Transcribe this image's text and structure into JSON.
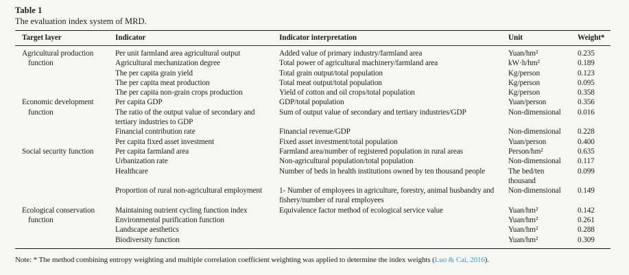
{
  "table": {
    "title": "Table 1",
    "caption": "The evaluation index system of MRD.",
    "columns": [
      "Target layer",
      "Indicator",
      "Indicator interpretation",
      "Unit",
      "Weight*"
    ],
    "groups": [
      {
        "layer": "Agricultural production function",
        "rows": [
          {
            "indicator": "Per unit farmland area agricultural output",
            "interpretation": "Added value of primary industry/farmland area",
            "unit": "Yuan/hm²",
            "weight": "0.235"
          },
          {
            "indicator": "Agricultural mechanization degree",
            "interpretation": "Total power of agricultural machinery/farmland area",
            "unit": "kW·h/hm²",
            "weight": "0.189"
          },
          {
            "indicator": "The per capita grain yield",
            "interpretation": "Total grain output/total population",
            "unit": "Kg/person",
            "weight": "0.123"
          },
          {
            "indicator": "The per capita meat production",
            "interpretation": "Total meat output/total population",
            "unit": "Kg/person",
            "weight": "0.095"
          },
          {
            "indicator": "The per capita non-grain crops production",
            "interpretation": "Yield of cotton and oil crops/total population",
            "unit": "Kg/person",
            "weight": "0.358"
          }
        ]
      },
      {
        "layer": "Economic development function",
        "rows": [
          {
            "indicator": "Per capita GDP",
            "interpretation": "GDP/total population",
            "unit": "Yuan/person",
            "weight": "0.356"
          },
          {
            "indicator": "The ratio of the output value of secondary and tertiary industries to GDP",
            "interpretation": "Sum of output value of secondary and tertiary industries/GDP",
            "unit": "Non-dimensional",
            "weight": "0.016"
          },
          {
            "indicator": "Financial contribution rate",
            "interpretation": "Financial revenue/GDP",
            "unit": "Non-dimensional",
            "weight": "0.228"
          },
          {
            "indicator": "Per capita fixed asset investment",
            "interpretation": "Fixed asset investment/total population",
            "unit": "Yuan/person",
            "weight": "0.400"
          }
        ]
      },
      {
        "layer": "Social security function",
        "rows": [
          {
            "indicator": "Per capita farmland area",
            "interpretation": "Farmland area/number of registered population in rural areas",
            "unit": "Person/hm²",
            "weight": "0.635"
          },
          {
            "indicator": "Urbanization rate",
            "interpretation": "Non-agricultural population/total population",
            "unit": "Non-dimensional",
            "weight": "0.117"
          },
          {
            "indicator": "Healthcare",
            "interpretation": "Number of beds in health institutions owned by ten thousand people",
            "unit": "The bed/ten thousand",
            "weight": "0.099"
          },
          {
            "indicator": "Proportion of rural non-agricultural employment",
            "interpretation": "1- Number of employees in agriculture, forestry, animal husbandry and fishery/number of rural employees",
            "unit": "Non-dimensional",
            "weight": "0.149"
          }
        ]
      },
      {
        "layer": "Ecological conservation function",
        "rows": [
          {
            "indicator": "Maintaining nutrient cycling function index",
            "interpretation": "Equivalence factor method of ecological service value",
            "unit": "Yuan/hm²",
            "weight": "0.142"
          },
          {
            "indicator": "Environmental purification function",
            "interpretation": "",
            "unit": "Yuan/hm²",
            "weight": "0.261"
          },
          {
            "indicator": "Landscape aesthetics",
            "interpretation": "",
            "unit": "Yuan/hm²",
            "weight": "0.288"
          },
          {
            "indicator": "Biodiversity function",
            "interpretation": "",
            "unit": "Yuan/hm²",
            "weight": "0.309"
          }
        ]
      }
    ]
  },
  "footnote": {
    "prefix": "Note: * The method combining entropy weighting and multiple correlation coefficient weighting was applied to determine the index weights (",
    "link": "Luo & Cai, 2016",
    "suffix": ").",
    "link_color": "#3d96cc"
  },
  "colors": {
    "page_background": "#f6f6f3",
    "text": "#1c1c1c",
    "rule": "#161616"
  }
}
